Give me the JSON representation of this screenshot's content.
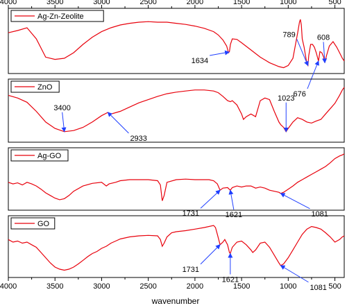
{
  "chart_data": {
    "type": "line",
    "xlabel": "wavenumber",
    "xlim": [
      4000,
      400
    ],
    "x_ticks": [
      4000,
      3500,
      3000,
      2500,
      2000,
      1500,
      1000,
      500
    ],
    "x_tick_labels": [
      "4000",
      "3500",
      "3000",
      "2500",
      "2000",
      "1500",
      "1000",
      "500"
    ],
    "line_color": "#e8000b",
    "arrow_color": "#1f3fff",
    "panels": [
      {
        "legend": "Ag-Zn-Zeolite",
        "points": [
          [
            4000,
            0.34
          ],
          [
            3900,
            0.3
          ],
          [
            3800,
            0.25
          ],
          [
            3700,
            0.45
          ],
          [
            3600,
            0.78
          ],
          [
            3500,
            0.82
          ],
          [
            3400,
            0.8
          ],
          [
            3300,
            0.7
          ],
          [
            3200,
            0.55
          ],
          [
            3100,
            0.42
          ],
          [
            3000,
            0.32
          ],
          [
            2900,
            0.25
          ],
          [
            2800,
            0.2
          ],
          [
            2700,
            0.17
          ],
          [
            2600,
            0.15
          ],
          [
            2500,
            0.14
          ],
          [
            2400,
            0.15
          ],
          [
            2300,
            0.15
          ],
          [
            2200,
            0.17
          ],
          [
            2100,
            0.19
          ],
          [
            2000,
            0.22
          ],
          [
            1900,
            0.26
          ],
          [
            1800,
            0.32
          ],
          [
            1750,
            0.38
          ],
          [
            1700,
            0.47
          ],
          [
            1660,
            0.58
          ],
          [
            1640,
            0.7
          ],
          [
            1630,
            0.68
          ],
          [
            1620,
            0.55
          ],
          [
            1600,
            0.45
          ],
          [
            1550,
            0.46
          ],
          [
            1500,
            0.52
          ],
          [
            1400,
            0.65
          ],
          [
            1300,
            0.78
          ],
          [
            1200,
            0.88
          ],
          [
            1100,
            0.95
          ],
          [
            1050,
            0.97
          ],
          [
            1000,
            0.93
          ],
          [
            950,
            0.8
          ],
          [
            900,
            0.35
          ],
          [
            880,
            0.15
          ],
          [
            870,
            0.1
          ],
          [
            860,
            0.2
          ],
          [
            850,
            0.45
          ],
          [
            830,
            0.6
          ],
          [
            815,
            0.75
          ],
          [
            800,
            0.9
          ],
          [
            789,
            0.93
          ],
          [
            780,
            0.75
          ],
          [
            760,
            0.55
          ],
          [
            740,
            0.55
          ],
          [
            720,
            0.6
          ],
          [
            700,
            0.7
          ],
          [
            676,
            0.85
          ],
          [
            660,
            0.68
          ],
          [
            640,
            0.7
          ],
          [
            620,
            0.78
          ],
          [
            608,
            0.88
          ],
          [
            590,
            0.75
          ],
          [
            560,
            0.58
          ],
          [
            520,
            0.5
          ],
          [
            480,
            0.6
          ],
          [
            450,
            0.7
          ],
          [
            420,
            0.8
          ],
          [
            400,
            0.85
          ]
        ],
        "annotations": [
          {
            "text": "1634",
            "x": 1634
          },
          {
            "text": "789",
            "x": 789
          },
          {
            "text": "676",
            "x": 676
          },
          {
            "text": "608",
            "x": 608
          }
        ]
      },
      {
        "legend": "ZnO",
        "points": [
          [
            4000,
            0.2
          ],
          [
            3900,
            0.25
          ],
          [
            3800,
            0.33
          ],
          [
            3700,
            0.5
          ],
          [
            3600,
            0.7
          ],
          [
            3500,
            0.82
          ],
          [
            3400,
            0.88
          ],
          [
            3300,
            0.86
          ],
          [
            3200,
            0.8
          ],
          [
            3100,
            0.7
          ],
          [
            3000,
            0.58
          ],
          [
            2933,
            0.52
          ],
          [
            2900,
            0.55
          ],
          [
            2800,
            0.5
          ],
          [
            2700,
            0.42
          ],
          [
            2600,
            0.34
          ],
          [
            2500,
            0.28
          ],
          [
            2400,
            0.22
          ],
          [
            2300,
            0.17
          ],
          [
            2200,
            0.14
          ],
          [
            2100,
            0.12
          ],
          [
            2000,
            0.1
          ],
          [
            1900,
            0.1
          ],
          [
            1800,
            0.12
          ],
          [
            1750,
            0.15
          ],
          [
            1700,
            0.22
          ],
          [
            1650,
            0.3
          ],
          [
            1620,
            0.32
          ],
          [
            1600,
            0.3
          ],
          [
            1550,
            0.38
          ],
          [
            1500,
            0.55
          ],
          [
            1480,
            0.65
          ],
          [
            1450,
            0.6
          ],
          [
            1400,
            0.55
          ],
          [
            1350,
            0.6
          ],
          [
            1300,
            0.3
          ],
          [
            1250,
            0.25
          ],
          [
            1200,
            0.28
          ],
          [
            1150,
            0.5
          ],
          [
            1100,
            0.7
          ],
          [
            1080,
            0.75
          ],
          [
            1050,
            0.8
          ],
          [
            1023,
            0.88
          ],
          [
            1000,
            0.82
          ],
          [
            950,
            0.7
          ],
          [
            900,
            0.62
          ],
          [
            850,
            0.65
          ],
          [
            800,
            0.7
          ],
          [
            750,
            0.72
          ],
          [
            700,
            0.68
          ],
          [
            650,
            0.65
          ],
          [
            600,
            0.55
          ],
          [
            550,
            0.45
          ],
          [
            500,
            0.35
          ],
          [
            450,
            0.2
          ],
          [
            420,
            0.1
          ],
          [
            400,
            0.05
          ]
        ],
        "annotations": [
          {
            "text": "3400",
            "x": 3400
          },
          {
            "text": "2933",
            "x": 2933
          },
          {
            "text": "1023",
            "x": 1023
          }
        ]
      },
      {
        "legend": "Ag-GO",
        "points": [
          [
            4000,
            0.55
          ],
          [
            3950,
            0.58
          ],
          [
            3900,
            0.56
          ],
          [
            3850,
            0.6
          ],
          [
            3800,
            0.55
          ],
          [
            3750,
            0.58
          ],
          [
            3700,
            0.62
          ],
          [
            3650,
            0.68
          ],
          [
            3600,
            0.75
          ],
          [
            3550,
            0.8
          ],
          [
            3500,
            0.85
          ],
          [
            3450,
            0.88
          ],
          [
            3400,
            0.86
          ],
          [
            3350,
            0.8
          ],
          [
            3300,
            0.72
          ],
          [
            3200,
            0.62
          ],
          [
            3100,
            0.57
          ],
          [
            3000,
            0.55
          ],
          [
            2950,
            0.62
          ],
          [
            2920,
            0.58
          ],
          [
            2850,
            0.55
          ],
          [
            2800,
            0.52
          ],
          [
            2700,
            0.5
          ],
          [
            2600,
            0.5
          ],
          [
            2500,
            0.5
          ],
          [
            2400,
            0.52
          ],
          [
            2370,
            0.6
          ],
          [
            2350,
            0.9
          ],
          [
            2330,
            0.8
          ],
          [
            2300,
            0.55
          ],
          [
            2200,
            0.5
          ],
          [
            2100,
            0.49
          ],
          [
            2000,
            0.5
          ],
          [
            1900,
            0.5
          ],
          [
            1850,
            0.5
          ],
          [
            1800,
            0.52
          ],
          [
            1760,
            0.58
          ],
          [
            1731,
            0.7
          ],
          [
            1700,
            0.66
          ],
          [
            1650,
            0.65
          ],
          [
            1621,
            0.7
          ],
          [
            1600,
            0.65
          ],
          [
            1550,
            0.62
          ],
          [
            1500,
            0.64
          ],
          [
            1450,
            0.62
          ],
          [
            1400,
            0.62
          ],
          [
            1350,
            0.66
          ],
          [
            1300,
            0.64
          ],
          [
            1250,
            0.66
          ],
          [
            1200,
            0.7
          ],
          [
            1150,
            0.72
          ],
          [
            1100,
            0.74
          ],
          [
            1081,
            0.76
          ],
          [
            1050,
            0.74
          ],
          [
            1000,
            0.68
          ],
          [
            950,
            0.62
          ],
          [
            900,
            0.55
          ],
          [
            850,
            0.5
          ],
          [
            800,
            0.45
          ],
          [
            750,
            0.4
          ],
          [
            700,
            0.35
          ],
          [
            650,
            0.3
          ],
          [
            600,
            0.25
          ],
          [
            550,
            0.18
          ],
          [
            500,
            0.1
          ],
          [
            450,
            0.05
          ],
          [
            420,
            0.03
          ],
          [
            400,
            0.01
          ]
        ],
        "annotations": [
          {
            "text": "1731",
            "x": 1731
          },
          {
            "text": "1621",
            "x": 1621
          },
          {
            "text": "1081",
            "x": 1081
          }
        ]
      },
      {
        "legend": "GO",
        "points": [
          [
            4000,
            0.35
          ],
          [
            3950,
            0.4
          ],
          [
            3900,
            0.38
          ],
          [
            3850,
            0.42
          ],
          [
            3800,
            0.4
          ],
          [
            3750,
            0.45
          ],
          [
            3700,
            0.5
          ],
          [
            3650,
            0.6
          ],
          [
            3600,
            0.7
          ],
          [
            3550,
            0.8
          ],
          [
            3500,
            0.88
          ],
          [
            3450,
            0.92
          ],
          [
            3400,
            0.94
          ],
          [
            3350,
            0.92
          ],
          [
            3300,
            0.88
          ],
          [
            3250,
            0.82
          ],
          [
            3200,
            0.75
          ],
          [
            3150,
            0.68
          ],
          [
            3100,
            0.62
          ],
          [
            3050,
            0.58
          ],
          [
            3000,
            0.52
          ],
          [
            2950,
            0.48
          ],
          [
            2900,
            0.42
          ],
          [
            2850,
            0.38
          ],
          [
            2800,
            0.34
          ],
          [
            2700,
            0.3
          ],
          [
            2600,
            0.28
          ],
          [
            2500,
            0.27
          ],
          [
            2400,
            0.28
          ],
          [
            2370,
            0.35
          ],
          [
            2350,
            0.48
          ],
          [
            2330,
            0.42
          ],
          [
            2300,
            0.3
          ],
          [
            2250,
            0.22
          ],
          [
            2200,
            0.2
          ],
          [
            2100,
            0.18
          ],
          [
            2000,
            0.15
          ],
          [
            1900,
            0.12
          ],
          [
            1800,
            0.08
          ],
          [
            1780,
            0.12
          ],
          [
            1760,
            0.25
          ],
          [
            1731,
            0.45
          ],
          [
            1700,
            0.4
          ],
          [
            1680,
            0.35
          ],
          [
            1650,
            0.45
          ],
          [
            1630,
            0.6
          ],
          [
            1621,
            0.62
          ],
          [
            1600,
            0.5
          ],
          [
            1550,
            0.4
          ],
          [
            1500,
            0.38
          ],
          [
            1450,
            0.45
          ],
          [
            1400,
            0.55
          ],
          [
            1380,
            0.6
          ],
          [
            1350,
            0.55
          ],
          [
            1300,
            0.42
          ],
          [
            1250,
            0.4
          ],
          [
            1200,
            0.5
          ],
          [
            1150,
            0.65
          ],
          [
            1100,
            0.8
          ],
          [
            1081,
            0.85
          ],
          [
            1050,
            0.82
          ],
          [
            1000,
            0.7
          ],
          [
            950,
            0.55
          ],
          [
            900,
            0.4
          ],
          [
            850,
            0.25
          ],
          [
            800,
            0.15
          ],
          [
            750,
            0.1
          ],
          [
            700,
            0.12
          ],
          [
            650,
            0.15
          ],
          [
            600,
            0.22
          ],
          [
            550,
            0.3
          ],
          [
            500,
            0.4
          ],
          [
            450,
            0.35
          ],
          [
            420,
            0.3
          ],
          [
            400,
            0.28
          ]
        ],
        "annotations": [
          {
            "text": "1731",
            "x": 1731
          },
          {
            "text": "1621",
            "x": 1621
          },
          {
            "text": "1081",
            "x": 1081
          }
        ]
      }
    ]
  }
}
